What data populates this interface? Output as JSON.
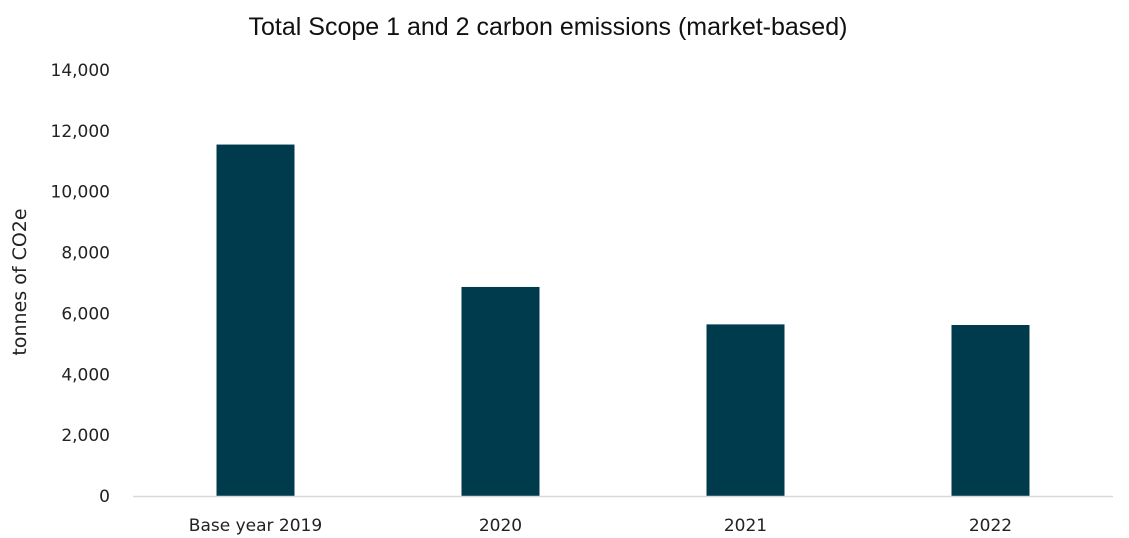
{
  "chart_data": {
    "type": "bar",
    "title": "Total Scope 1 and 2 carbon emissions (market-based)",
    "xlabel": "",
    "ylabel": "tonnes of CO2e",
    "categories": [
      "Base year 2019",
      "2020",
      "2021",
      "2022"
    ],
    "values": [
      11550,
      6870,
      5640,
      5620
    ],
    "ylim": [
      0,
      14000
    ],
    "yticks": [
      0,
      2000,
      4000,
      6000,
      8000,
      10000,
      12000,
      14000
    ],
    "ytick_labels": [
      "0",
      "2,000",
      "4,000",
      "6,000",
      "8,000",
      "10,000",
      "12,000",
      "14,000"
    ],
    "grid": false,
    "legend": "none",
    "bar_color": "#003a4d",
    "axis_color": "#d9d9d9"
  }
}
